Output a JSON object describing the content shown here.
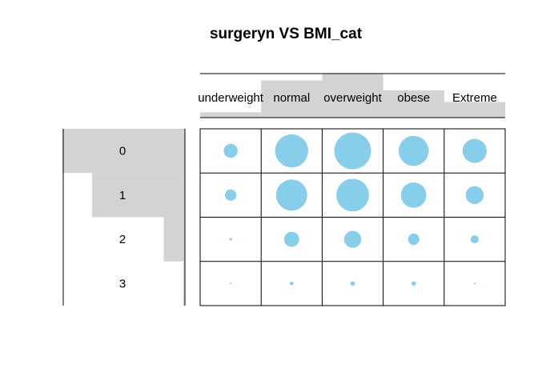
{
  "chart_data": {
    "type": "balloonplot",
    "title": "surgeryn VS BMI_cat",
    "columns": [
      "underweight",
      "normal",
      "overweight",
      "obese",
      "Extreme"
    ],
    "rows": [
      "0",
      "1",
      "2",
      "3"
    ],
    "values": [
      [
        30,
        170,
        210,
        140,
        90
      ],
      [
        20,
        150,
        165,
        100,
        50
      ],
      [
        1,
        35,
        45,
        20,
        10
      ],
      [
        0,
        2,
        3,
        3,
        0
      ]
    ],
    "column_totals": [
      51,
      357,
      423,
      263,
      150
    ],
    "row_totals": [
      640,
      485,
      111,
      8
    ],
    "marginal_bar_color": "#d3d3d3",
    "balloon_color": "#87ceeb",
    "grid": true
  }
}
